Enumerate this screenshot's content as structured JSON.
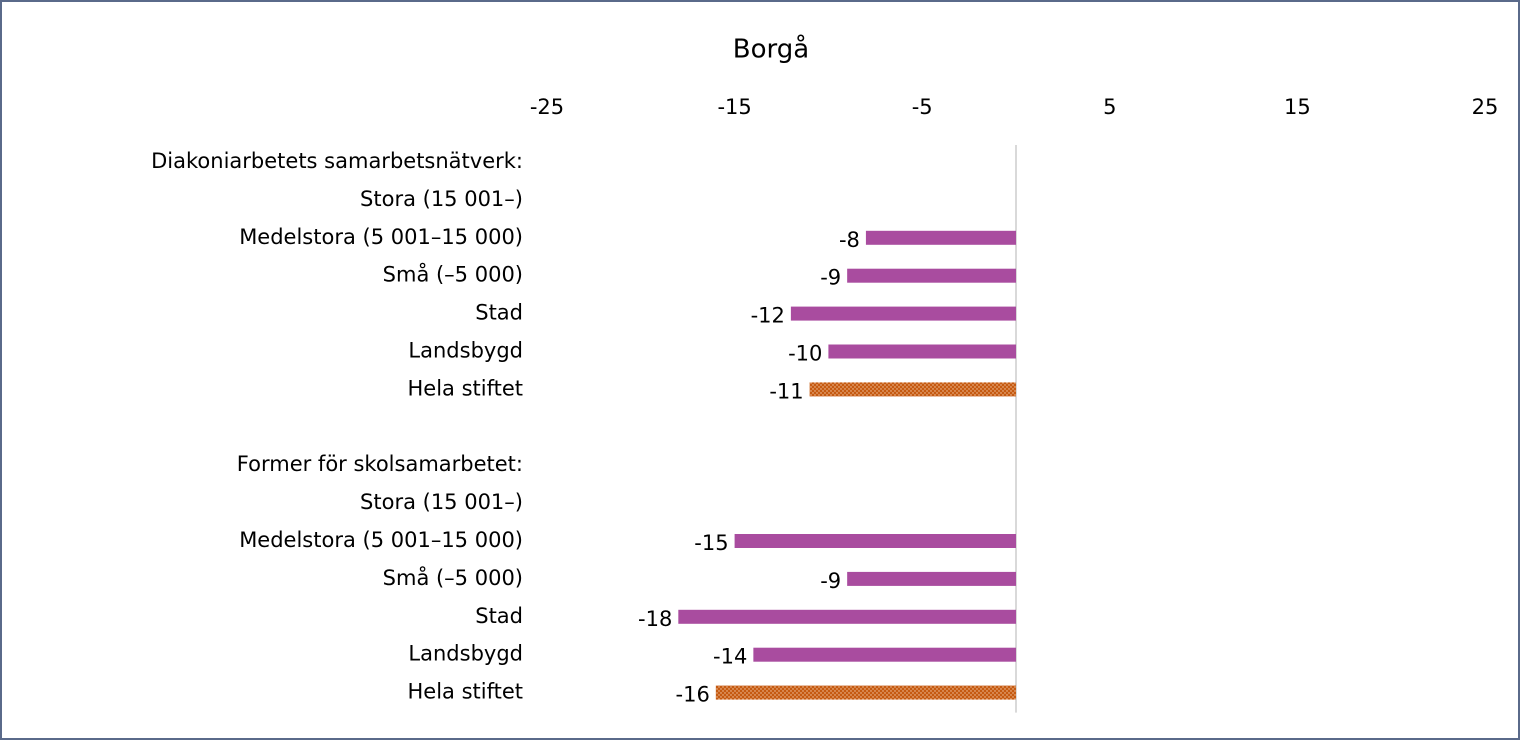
{
  "chart_data": {
    "type": "bar",
    "orientation": "horizontal",
    "title": "Borgå",
    "categories": [
      "Diakoniarbetets samarbetsnätverk:",
      "Stora (15 001–)",
      "Medelstora (5 001–15 000)",
      "Små (–5 000)",
      "Stad",
      "Landsbygd",
      "Hela stiftet",
      null,
      "Former för skolsamarbetet:",
      "Stora (15 001–)",
      "Medelstora (5 001–15 000)",
      "Små (–5 000)",
      "Stad",
      "Landsbygd",
      "Hela stiftet"
    ],
    "values": [
      null,
      null,
      -8,
      -9,
      -12,
      -10,
      -11,
      null,
      null,
      null,
      -15,
      -9,
      -18,
      -14,
      -16
    ],
    "colors": [
      "#a94c9f",
      "#a94c9f",
      "#a94c9f",
      "#a94c9f",
      "#a94c9f",
      "#a94c9f",
      "#c55a11",
      "#a94c9f",
      "#a94c9f",
      "#a94c9f",
      "#a94c9f",
      "#a94c9f",
      "#a94c9f",
      "#a94c9f",
      "#c55a11"
    ],
    "xlim": [
      -25,
      25
    ],
    "xticks": [
      -25,
      -15,
      -5,
      5,
      15,
      25
    ],
    "grid": false
  }
}
